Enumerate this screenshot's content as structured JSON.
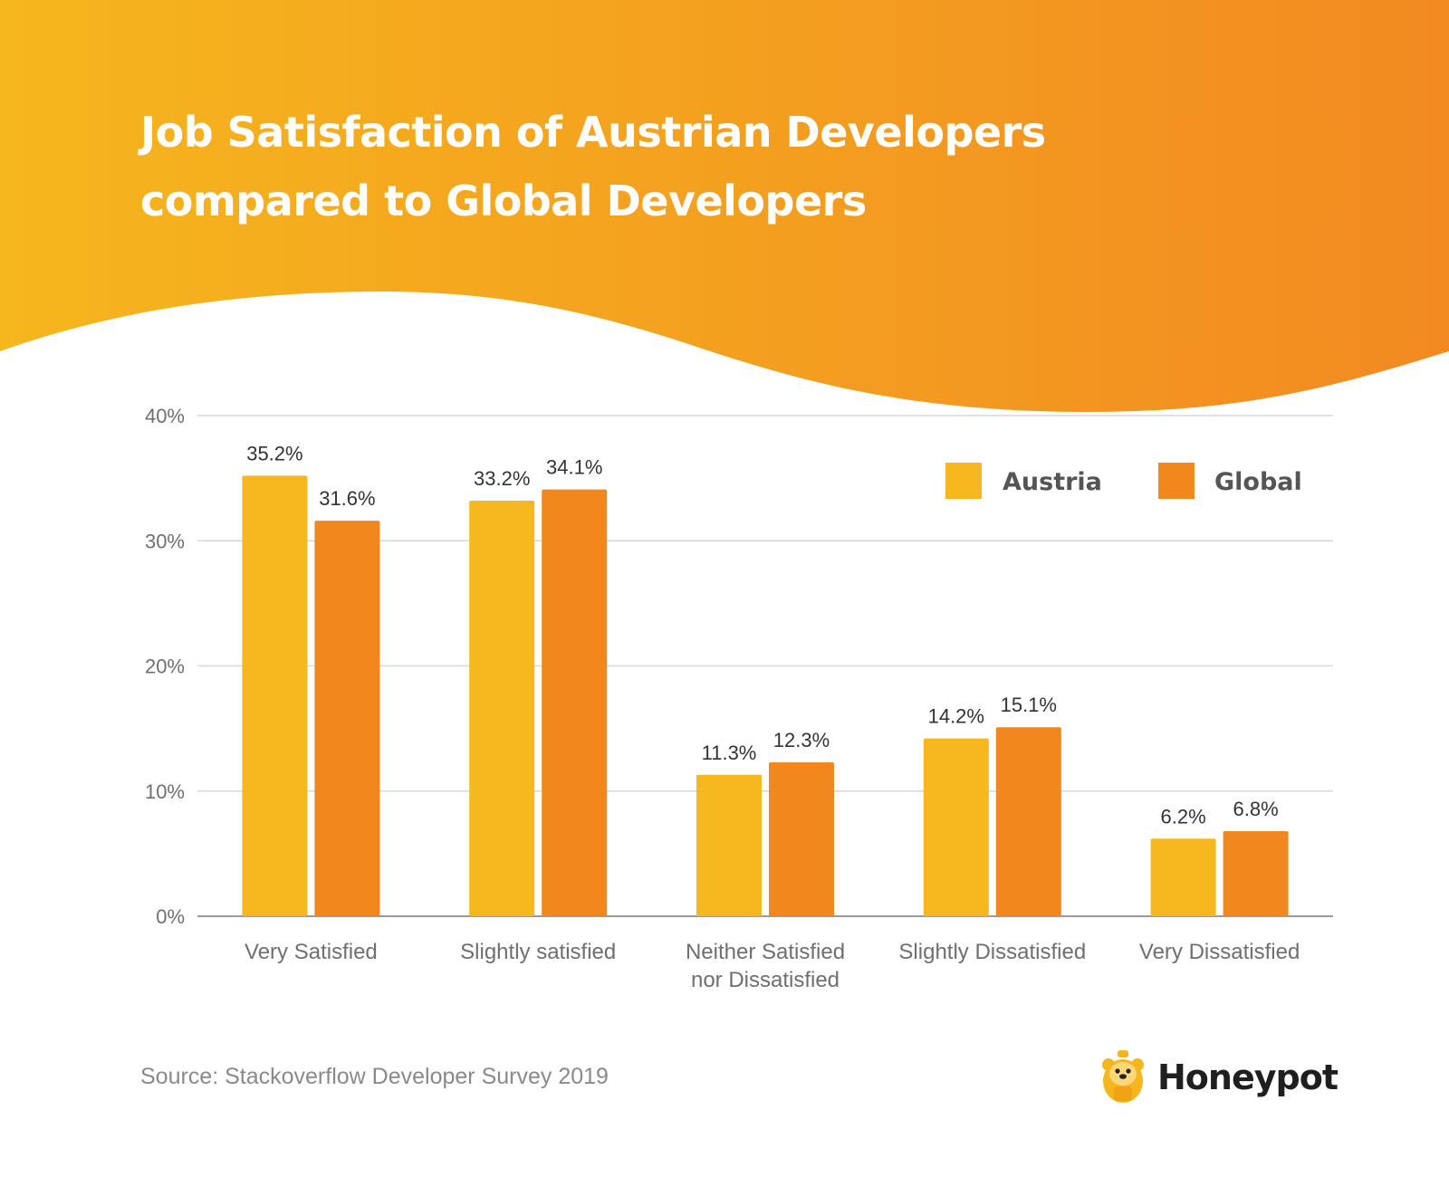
{
  "header": {
    "title_line1": "Job Satisfaction of Austrian Developers",
    "title_line2": "compared to Global Developers"
  },
  "colors": {
    "gradient_start": "#F6B61D",
    "gradient_end": "#F28A21",
    "austria": "#F6B81E",
    "global": "#F2871E",
    "grid": "#d8d8d8",
    "axis_text": "#6f6f6f",
    "label_text": "#333333"
  },
  "chart_data": {
    "type": "bar",
    "title": "Job Satisfaction of Austrian Developers compared to Global Developers",
    "categories": [
      [
        "Very Satisfied"
      ],
      [
        "Slightly satisfied"
      ],
      [
        "Neither Satisfied",
        "nor Dissatisfied"
      ],
      [
        "Slightly Dissatisfied"
      ],
      [
        "Very Dissatisfied"
      ]
    ],
    "series": [
      {
        "name": "Austria",
        "values": [
          35.2,
          33.2,
          11.3,
          14.2,
          6.2
        ],
        "labels": [
          "35.2%",
          "33.2%",
          "11.3%",
          "14.2%",
          "6.2%"
        ]
      },
      {
        "name": "Global",
        "values": [
          31.6,
          34.1,
          12.3,
          15.1,
          6.8
        ],
        "labels": [
          "31.6%",
          "34.1%",
          "12.3%",
          "15.1%",
          "6.8%"
        ]
      }
    ],
    "yticks": [
      0,
      10,
      20,
      30,
      40
    ],
    "ytick_labels": [
      "0%",
      "10%",
      "20%",
      "30%",
      "40%"
    ],
    "ylim": [
      0,
      40
    ],
    "grid": true,
    "legend": "top-right"
  },
  "footer": {
    "source": "Source: Stackoverflow Developer Survey 2019",
    "logo_text": "Honeypot",
    "logo_icon": "honeypot-bear-icon"
  }
}
